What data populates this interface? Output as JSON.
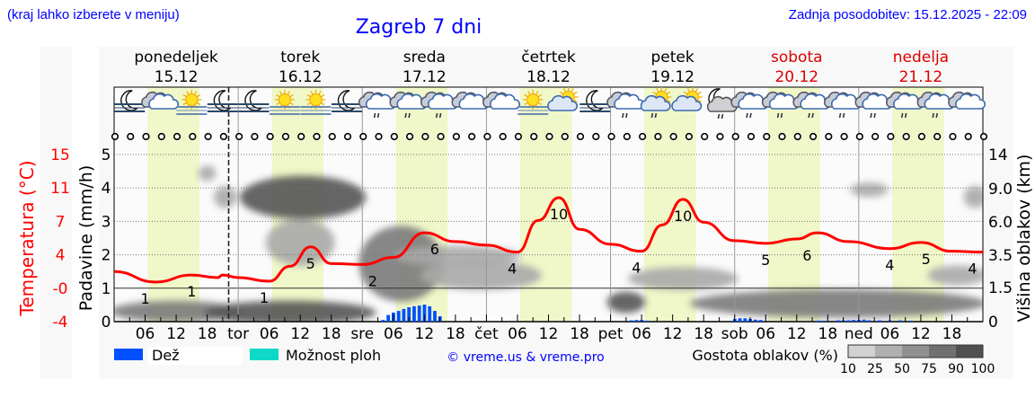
{
  "header": {
    "menu_hint": "(kraj lahko izberete v meniju)",
    "title": "Zagreb 7 dni",
    "last_update": "Zadnja posodobitev: 15.12.2025 - 22:09"
  },
  "colors": {
    "link_blue": "#0000ff",
    "temperature": "#ff0000",
    "weekend": "#dd0000",
    "rain": "#0050ff",
    "showers": "#10d8c8",
    "daylight": "#f0f7c8"
  },
  "chart_data": {
    "type": "line",
    "days": [
      {
        "name": "ponedeljek",
        "date": "15.12",
        "abbr": "",
        "weekend": false
      },
      {
        "name": "torek",
        "date": "16.12",
        "abbr": "tor",
        "weekend": false
      },
      {
        "name": "sreda",
        "date": "17.12",
        "abbr": "sre",
        "weekend": false
      },
      {
        "name": "četrtek",
        "date": "18.12",
        "abbr": "čet",
        "weekend": false
      },
      {
        "name": "petek",
        "date": "19.12",
        "abbr": "pet",
        "weekend": false
      },
      {
        "name": "sobota",
        "date": "20.12",
        "abbr": "sob",
        "weekend": true
      },
      {
        "name": "nedelja",
        "date": "21.12",
        "abbr": "ned",
        "weekend": true
      }
    ],
    "hour_ticks": [
      "06",
      "12",
      "18"
    ],
    "now_marker": "15.12 22:09",
    "daylight_hours": [
      6.5,
      16.5
    ],
    "y_left_temp": {
      "label": "Temperatura (°C)",
      "ticks": [
        "15",
        "11",
        "7",
        "4",
        "-0",
        "-4"
      ],
      "range": [
        -4,
        15
      ]
    },
    "y_left_precip": {
      "label": "Padavine (mm/h)",
      "ticks": [
        "5",
        "4",
        "3",
        "2",
        "1",
        "0"
      ],
      "range": [
        0,
        5
      ]
    },
    "y_right_cloud": {
      "label": "Višina oblakov (km)",
      "ticks": [
        "14",
        "9.0",
        "6.0",
        "3.5",
        "1.5",
        "0"
      ]
    },
    "temperature": {
      "hours": [
        0,
        8,
        15,
        20,
        21,
        24,
        30,
        34,
        38,
        42,
        48,
        54,
        60,
        66,
        72,
        78,
        82,
        86,
        90,
        96,
        102,
        106,
        110,
        114,
        120,
        126,
        132,
        136,
        142,
        150,
        156,
        162,
        168
      ],
      "values": [
        1.7,
        0.5,
        1.3,
        1.0,
        1.3,
        1.0,
        0.6,
        2.3,
        4.5,
        2.6,
        2.5,
        3.3,
        6.1,
        5.1,
        4.7,
        3.9,
        7.5,
        10.1,
        6.5,
        4.8,
        4.0,
        7.0,
        9.9,
        7.3,
        5.2,
        4.9,
        5.4,
        6.1,
        5.1,
        4.3,
        5.0,
        4.0,
        3.9
      ]
    },
    "temperature_labels": [
      {
        "hour": 6,
        "text": "1"
      },
      {
        "hour": 15,
        "text": "1"
      },
      {
        "hour": 29,
        "text": "1"
      },
      {
        "hour": 38,
        "text": "5"
      },
      {
        "hour": 50,
        "text": "2"
      },
      {
        "hour": 62,
        "text": "6"
      },
      {
        "hour": 77,
        "text": "4"
      },
      {
        "hour": 86,
        "text": "10"
      },
      {
        "hour": 101,
        "text": "4"
      },
      {
        "hour": 110,
        "text": "10"
      },
      {
        "hour": 126,
        "text": "5"
      },
      {
        "hour": 134,
        "text": "6"
      },
      {
        "hour": 150,
        "text": "4"
      },
      {
        "hour": 157,
        "text": "5"
      },
      {
        "hour": 166,
        "text": "4"
      }
    ],
    "rain": {
      "hours": [
        52,
        53,
        54,
        55,
        56,
        57,
        58,
        59,
        60,
        61,
        62,
        63,
        100,
        101,
        102,
        103,
        120,
        121,
        122,
        123,
        124,
        125,
        136,
        137,
        140,
        141,
        142,
        143,
        144,
        145,
        146,
        148,
        150,
        152,
        154
      ],
      "values": [
        0.05,
        0.2,
        0.27,
        0.32,
        0.38,
        0.43,
        0.46,
        0.48,
        0.51,
        0.46,
        0.32,
        0.16,
        0.04,
        0.05,
        0.05,
        0.03,
        0.08,
        0.1,
        0.1,
        0.08,
        0.06,
        0.05,
        0.03,
        0.03,
        0.04,
        0.04,
        0.04,
        0.05,
        0.05,
        0.06,
        0.04,
        0.04,
        0.04,
        0.04,
        0.03
      ]
    },
    "cloud_cover": [
      {
        "hours": [
          0,
          24
        ],
        "km": [
          0.1,
          0.8
        ],
        "density": 75
      },
      {
        "hours": [
          18,
          50
        ],
        "km": [
          0.0,
          0.8
        ],
        "density": 90
      },
      {
        "hours": [
          25,
          48
        ],
        "km": [
          6.5,
          10.5
        ],
        "density": 90
      },
      {
        "hours": [
          30,
          42
        ],
        "km": [
          3.0,
          6.0
        ],
        "density": 50
      },
      {
        "hours": [
          48,
          63
        ],
        "km": [
          1.0,
          5.5
        ],
        "density": 75
      },
      {
        "hours": [
          55,
          78
        ],
        "km": [
          3.0,
          4.0
        ],
        "density": 50
      },
      {
        "hours": [
          60,
          82
        ],
        "km": [
          1.5,
          3.0
        ],
        "density": 50
      },
      {
        "hours": [
          96,
          102
        ],
        "km": [
          0.5,
          1.2
        ],
        "density": 90
      },
      {
        "hours": [
          100,
          120
        ],
        "km": [
          1.5,
          2.6
        ],
        "density": 50
      },
      {
        "hours": [
          112,
          168
        ],
        "km": [
          0.3,
          1.3
        ],
        "density": 75
      },
      {
        "hours": [
          143,
          149
        ],
        "km": [
          8.5,
          9.5
        ],
        "density": 50
      },
      {
        "hours": [
          165,
          168
        ],
        "km": [
          7.5,
          9.0
        ],
        "density": 50
      },
      {
        "hours": [
          158,
          168
        ],
        "km": [
          1.8,
          2.7
        ],
        "density": 50
      },
      {
        "hours": [
          17,
          19
        ],
        "km": [
          10.5,
          12.0
        ],
        "density": 50
      },
      {
        "hours": [
          20,
          23
        ],
        "km": [
          7.5,
          9.0
        ],
        "density": 50
      }
    ],
    "weather_icons": [
      "moon-fog",
      "cloudy",
      "sun-fog",
      "moon-fog",
      "moon-fog",
      "sun-fog",
      "sun-fog",
      "moon-fog",
      "cloud-drizzle",
      "cloud-drizzle",
      "cloud-drizzle",
      "cloudy",
      "cloudy",
      "sun-fog",
      "sun-cloud",
      "moon-fog",
      "cloud-drizzle",
      "sun-cloud-drizzle",
      "sun-cloud",
      "moon-cloud-drizzle",
      "cloud-drizzle",
      "cloud-drizzle",
      "cloud-drizzle",
      "cloud-drizzle",
      "cloud-drizzle",
      "cloud-drizzle",
      "cloud-drizzle",
      "cloudy"
    ],
    "wind_symbol": "calm-circle-icon"
  },
  "legend": {
    "rain": "Dež",
    "showers": "Možnost ploh",
    "copyright": "© vreme.us & vreme.pro",
    "cloud_density": "Gostota oblakov (%)",
    "density_levels": [
      "10",
      "25",
      "50",
      "75",
      "90",
      "100"
    ],
    "density_colors": [
      "#d2d2d2",
      "#b0b0b0",
      "#909090",
      "#707070",
      "#505050"
    ]
  }
}
